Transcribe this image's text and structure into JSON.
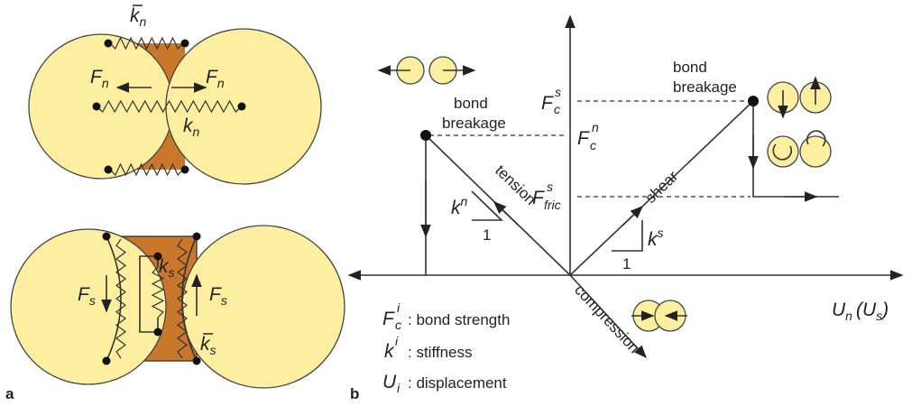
{
  "panel_a": {
    "label": "a",
    "normal": {
      "spring_top": {
        "base": "k",
        "sub": "n"
      },
      "force_left": {
        "base": "F",
        "sub": "n"
      },
      "force_right": {
        "base": "F",
        "sub": "n"
      },
      "spring_center": {
        "base": "k",
        "sub": "n"
      }
    },
    "shear": {
      "spring_center": {
        "base": "k",
        "sub": "s"
      },
      "force_left": {
        "base": "F",
        "sub": "s"
      },
      "force_right": {
        "base": "F",
        "sub": "s"
      },
      "spring_bottom": {
        "base": "k",
        "sub": "s"
      }
    }
  },
  "panel_b": {
    "label": "b",
    "breakage_left": [
      "bond",
      "breakage"
    ],
    "breakage_right": [
      "bond",
      "breakage"
    ],
    "fcs": {
      "base": "F",
      "sub": "c",
      "sup": "s"
    },
    "fcn": {
      "base": "F",
      "sub": "c",
      "sup": "n"
    },
    "ffric": {
      "base": "F",
      "sub": "fric",
      "sup": "s"
    },
    "tension": "tension",
    "shear": "shear",
    "compression": "compression",
    "kn": {
      "base": "k",
      "sup": "n"
    },
    "kn_run": "1",
    "ks": {
      "base": "k",
      "sup": "s"
    },
    "ks_run": "1",
    "axis_label": {
      "base": "U",
      "sub": "n",
      "open": "(U",
      "sub2": "s",
      "close": ")"
    },
    "legend": [
      {
        "base": "F",
        "sub": "c",
        "sup": "i",
        "text": ": bond strength"
      },
      {
        "base": "k",
        "sup": "i",
        "text": ": stiffness"
      },
      {
        "base": "U",
        "sub": "i",
        "text": ": displacement"
      }
    ]
  }
}
